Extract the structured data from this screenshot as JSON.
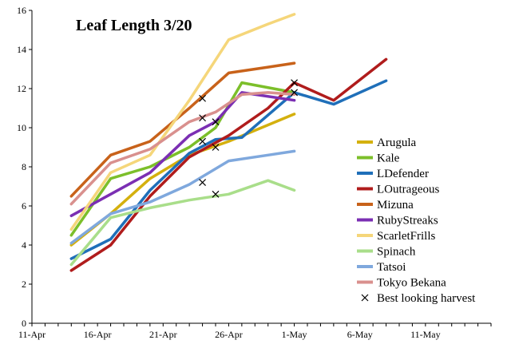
{
  "chart_data": {
    "type": "line",
    "title": "Leaf Length 3/20",
    "xlabel": "",
    "ylabel": "",
    "ylim": [
      0,
      16
    ],
    "yticks": [
      0,
      2,
      4,
      6,
      8,
      10,
      12,
      14,
      16
    ],
    "xlim": [
      0,
      35
    ],
    "xticks": [
      {
        "day": 0,
        "label": "11-Apr"
      },
      {
        "day": 5,
        "label": "16-Apr"
      },
      {
        "day": 10,
        "label": "21-Apr"
      },
      {
        "day": 15,
        "label": "26-Apr"
      },
      {
        "day": 20,
        "label": "1-May"
      },
      {
        "day": 25,
        "label": "6-May"
      },
      {
        "day": 30,
        "label": "11-May"
      }
    ],
    "legend_position": "right",
    "series": [
      {
        "name": "Arugula",
        "color": "#D4B00E",
        "x": [
          3,
          6,
          9,
          12,
          15,
          20
        ],
        "y": [
          4.0,
          5.6,
          7.4,
          8.6,
          9.3,
          10.7
        ]
      },
      {
        "name": "Kale",
        "color": "#7CBF2A",
        "x": [
          3,
          6,
          9,
          12,
          14,
          16,
          20
        ],
        "y": [
          4.5,
          7.4,
          8.0,
          9.0,
          10.0,
          12.3,
          11.8
        ]
      },
      {
        "name": "LDefender",
        "color": "#1F6FB9",
        "x": [
          3,
          6,
          9,
          12,
          14,
          16,
          20,
          23,
          27
        ],
        "y": [
          3.3,
          4.3,
          6.8,
          8.7,
          9.4,
          9.5,
          11.8,
          11.2,
          12.4
        ]
      },
      {
        "name": "LOutrageous",
        "color": "#B01C1C",
        "x": [
          3,
          6,
          9,
          12,
          15,
          18,
          20,
          23,
          27
        ],
        "y": [
          2.7,
          4.0,
          6.5,
          8.5,
          9.6,
          11.0,
          12.3,
          11.4,
          13.5
        ]
      },
      {
        "name": "Mizuna",
        "color": "#C8621A",
        "x": [
          3,
          6,
          9,
          12,
          15,
          18,
          20
        ],
        "y": [
          6.5,
          8.6,
          9.3,
          11.0,
          12.8,
          13.1,
          13.3
        ]
      },
      {
        "name": "RubyStreaks",
        "color": "#7B2FB3",
        "x": [
          3,
          6,
          9,
          12,
          14,
          16,
          20
        ],
        "y": [
          5.5,
          6.6,
          7.7,
          9.6,
          10.3,
          11.8,
          11.4
        ]
      },
      {
        "name": "ScarletFrills",
        "color": "#F5D67A",
        "x": [
          3,
          6,
          9,
          12,
          15,
          18,
          20
        ],
        "y": [
          4.8,
          7.7,
          8.6,
          11.4,
          14.5,
          15.3,
          15.8
        ]
      },
      {
        "name": "Spinach",
        "color": "#A9DE8A",
        "x": [
          3,
          6,
          9,
          12,
          15,
          18,
          20
        ],
        "y": [
          3.0,
          5.4,
          5.9,
          6.3,
          6.6,
          7.3,
          6.8
        ]
      },
      {
        "name": "Tatsoi",
        "color": "#7FA8DD",
        "x": [
          3,
          6,
          9,
          12,
          15,
          18,
          20
        ],
        "y": [
          4.1,
          5.6,
          6.2,
          7.1,
          8.3,
          8.6,
          8.8
        ]
      },
      {
        "name": "Tokyo Bekana",
        "color": "#D9908E",
        "x": [
          3,
          6,
          9,
          12,
          14,
          16,
          18,
          20
        ],
        "y": [
          6.1,
          8.2,
          8.9,
          10.3,
          10.8,
          11.7,
          11.8,
          11.7
        ]
      }
    ],
    "markers": {
      "name": "Best looking harvest",
      "symbol": "x",
      "points": [
        {
          "x": 13,
          "y": 11.5
        },
        {
          "x": 13,
          "y": 10.5
        },
        {
          "x": 13,
          "y": 9.3
        },
        {
          "x": 13,
          "y": 7.2
        },
        {
          "x": 14,
          "y": 10.3
        },
        {
          "x": 14,
          "y": 9.0
        },
        {
          "x": 14,
          "y": 6.6
        },
        {
          "x": 20,
          "y": 12.3
        },
        {
          "x": 20,
          "y": 11.8
        }
      ]
    }
  }
}
